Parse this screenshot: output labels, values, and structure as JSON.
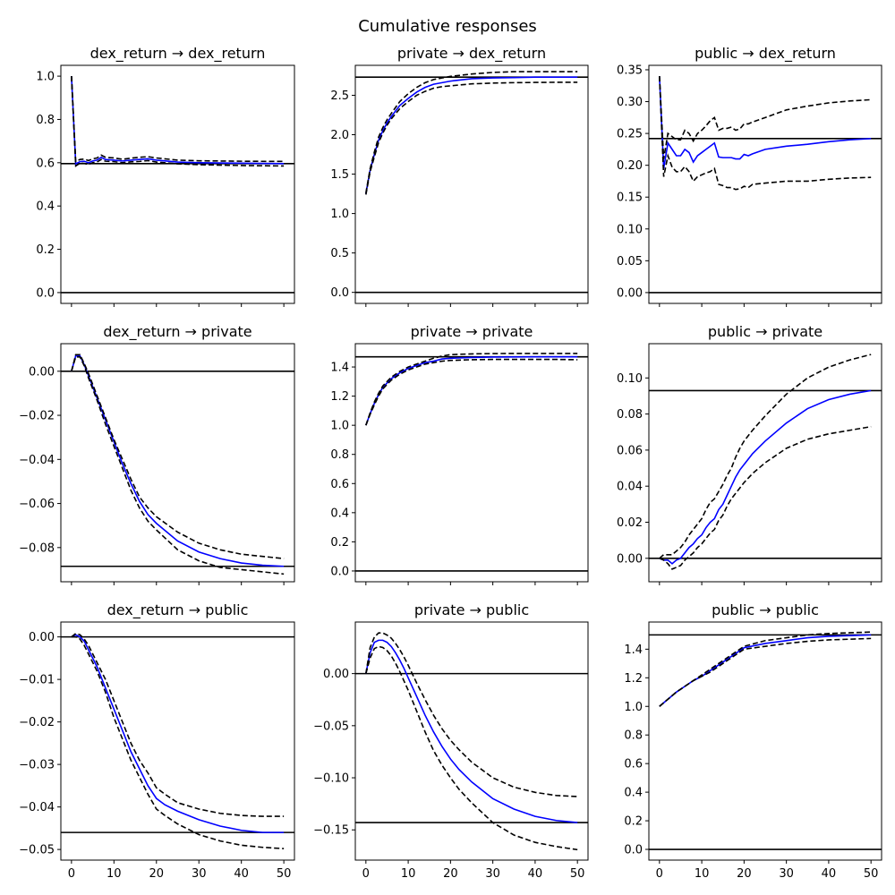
{
  "figure": {
    "title": "Cumulative responses"
  },
  "style": {
    "irf_color": "#0000ff",
    "band_color": "#000000",
    "ref_color": "#000000"
  },
  "chart_data": [
    {
      "type": "line",
      "title": "dex_return → dex_return",
      "xlim": [
        -2.5,
        52.5
      ],
      "ylim": [
        -0.05,
        1.05
      ],
      "xticks": [
        0,
        10,
        20,
        30,
        40,
        50
      ],
      "yticks": [
        0.0,
        0.2,
        0.4,
        0.6,
        0.8,
        1.0
      ],
      "ytick_labels": [
        "0.0",
        "0.2",
        "0.4",
        "0.6",
        "0.8",
        "1.0"
      ],
      "x": [
        0,
        1,
        2,
        3,
        4,
        5,
        6,
        7,
        8,
        10,
        12,
        14,
        16,
        18,
        20,
        25,
        30,
        40,
        50
      ],
      "irf": [
        1.0,
        0.595,
        0.605,
        0.607,
        0.6,
        0.608,
        0.612,
        0.625,
        0.615,
        0.612,
        0.608,
        0.612,
        0.615,
        0.618,
        0.612,
        0.603,
        0.6,
        0.598,
        0.596
      ],
      "lower": [
        1.0,
        0.585,
        0.598,
        0.597,
        0.592,
        0.6,
        0.603,
        0.615,
        0.607,
        0.605,
        0.6,
        0.604,
        0.606,
        0.61,
        0.603,
        0.595,
        0.591,
        0.587,
        0.585
      ],
      "upper": [
        1.0,
        0.605,
        0.615,
        0.617,
        0.61,
        0.618,
        0.622,
        0.635,
        0.625,
        0.622,
        0.616,
        0.621,
        0.625,
        0.628,
        0.622,
        0.612,
        0.609,
        0.607,
        0.606
      ],
      "hlines": [
        0.0,
        0.596
      ]
    },
    {
      "type": "line",
      "title": "private → dex_return",
      "xlim": [
        -2.5,
        52.5
      ],
      "ylim": [
        -0.14,
        2.88
      ],
      "xticks": [
        0,
        10,
        20,
        30,
        40,
        50
      ],
      "yticks": [
        0.0,
        0.5,
        1.0,
        1.5,
        2.0,
        2.5
      ],
      "ytick_labels": [
        "0.0",
        "0.5",
        "1.0",
        "1.5",
        "2.0",
        "2.5"
      ],
      "x": [
        0,
        1,
        2,
        3,
        4,
        5,
        6,
        8,
        10,
        12,
        14,
        16,
        18,
        20,
        25,
        30,
        35,
        40,
        45,
        50
      ],
      "irf": [
        1.25,
        1.55,
        1.75,
        1.93,
        2.05,
        2.15,
        2.23,
        2.37,
        2.46,
        2.54,
        2.6,
        2.64,
        2.66,
        2.68,
        2.71,
        2.72,
        2.725,
        2.73,
        2.73,
        2.73
      ],
      "lower": [
        1.24,
        1.53,
        1.72,
        1.9,
        2.02,
        2.12,
        2.2,
        2.33,
        2.42,
        2.5,
        2.55,
        2.59,
        2.61,
        2.62,
        2.645,
        2.655,
        2.66,
        2.663,
        2.665,
        2.665
      ],
      "upper": [
        1.26,
        1.57,
        1.78,
        1.97,
        2.09,
        2.19,
        2.27,
        2.42,
        2.52,
        2.6,
        2.66,
        2.7,
        2.72,
        2.74,
        2.77,
        2.79,
        2.8,
        2.8,
        2.8,
        2.8
      ],
      "hlines": [
        0.0,
        2.73
      ]
    },
    {
      "type": "line",
      "title": "public → dex_return",
      "xlim": [
        -2.5,
        52.5
      ],
      "ylim": [
        -0.017,
        0.357
      ],
      "xticks": [
        0,
        10,
        20,
        30,
        40,
        50
      ],
      "yticks": [
        0.0,
        0.05,
        0.1,
        0.15,
        0.2,
        0.25,
        0.3,
        0.35
      ],
      "ytick_labels": [
        "0.00",
        "0.05",
        "0.10",
        "0.15",
        "0.20",
        "0.25",
        "0.30",
        "0.35"
      ],
      "x": [
        0,
        1,
        2,
        3,
        4,
        5,
        6,
        7,
        8,
        9,
        10,
        11,
        12,
        13,
        14,
        15,
        16,
        17,
        18,
        19,
        20,
        21,
        22,
        25,
        30,
        35,
        40,
        45,
        50
      ],
      "irf": [
        0.34,
        0.195,
        0.235,
        0.225,
        0.215,
        0.215,
        0.225,
        0.22,
        0.205,
        0.215,
        0.22,
        0.225,
        0.23,
        0.235,
        0.213,
        0.212,
        0.212,
        0.212,
        0.21,
        0.21,
        0.217,
        0.215,
        0.218,
        0.225,
        0.23,
        0.233,
        0.237,
        0.24,
        0.242
      ],
      "lower": [
        0.34,
        0.182,
        0.215,
        0.197,
        0.19,
        0.19,
        0.198,
        0.19,
        0.175,
        0.182,
        0.185,
        0.188,
        0.19,
        0.195,
        0.17,
        0.168,
        0.165,
        0.165,
        0.162,
        0.163,
        0.167,
        0.165,
        0.17,
        0.172,
        0.175,
        0.175,
        0.178,
        0.18,
        0.181
      ],
      "upper": [
        0.34,
        0.21,
        0.25,
        0.245,
        0.24,
        0.24,
        0.255,
        0.25,
        0.238,
        0.25,
        0.255,
        0.262,
        0.27,
        0.275,
        0.255,
        0.258,
        0.258,
        0.26,
        0.255,
        0.257,
        0.265,
        0.265,
        0.268,
        0.275,
        0.287,
        0.293,
        0.298,
        0.301,
        0.303
      ],
      "hlines": [
        0.0,
        0.242
      ]
    },
    {
      "type": "line",
      "title": "dex_return → private",
      "xlim": [
        -2.5,
        52.5
      ],
      "ylim": [
        -0.0955,
        0.0125
      ],
      "xticks": [
        0,
        10,
        20,
        30,
        40,
        50
      ],
      "yticks": [
        0.0,
        -0.02,
        -0.04,
        -0.06,
        -0.08
      ],
      "ytick_labels": [
        "0.00",
        "−0.02",
        "−0.04",
        "−0.06",
        "−0.08"
      ],
      "x": [
        0,
        1,
        2,
        3,
        4,
        5,
        6,
        8,
        10,
        12,
        14,
        16,
        18,
        20,
        25,
        30,
        35,
        40,
        45,
        50
      ],
      "irf": [
        0.0,
        0.007,
        0.007,
        0.003,
        -0.002,
        -0.007,
        -0.012,
        -0.022,
        -0.032,
        -0.042,
        -0.051,
        -0.059,
        -0.065,
        -0.069,
        -0.077,
        -0.082,
        -0.085,
        -0.087,
        -0.088,
        -0.0885
      ],
      "lower": [
        0.0,
        0.0065,
        0.0065,
        0.0025,
        -0.003,
        -0.008,
        -0.013,
        -0.024,
        -0.034,
        -0.044,
        -0.054,
        -0.062,
        -0.068,
        -0.072,
        -0.081,
        -0.086,
        -0.089,
        -0.09,
        -0.091,
        -0.092
      ],
      "upper": [
        0.0,
        0.0075,
        0.0075,
        0.0035,
        -0.001,
        -0.006,
        -0.011,
        -0.021,
        -0.031,
        -0.04,
        -0.049,
        -0.057,
        -0.062,
        -0.066,
        -0.073,
        -0.078,
        -0.081,
        -0.083,
        -0.084,
        -0.085
      ],
      "hlines": [
        0.0,
        -0.0885
      ]
    },
    {
      "type": "line",
      "title": "private → private",
      "xlim": [
        -2.5,
        52.5
      ],
      "ylim": [
        -0.074,
        1.56
      ],
      "xticks": [
        0,
        10,
        20,
        30,
        40,
        50
      ],
      "yticks": [
        0.0,
        0.2,
        0.4,
        0.6,
        0.8,
        1.0,
        1.2,
        1.4
      ],
      "ytick_labels": [
        "0.0",
        "0.2",
        "0.4",
        "0.6",
        "0.8",
        "1.0",
        "1.2",
        "1.4"
      ],
      "x": [
        0,
        1,
        2,
        3,
        4,
        5,
        6,
        8,
        10,
        12,
        14,
        16,
        18,
        20,
        25,
        30,
        35,
        40,
        45,
        50
      ],
      "irf": [
        1.0,
        1.08,
        1.15,
        1.21,
        1.26,
        1.29,
        1.32,
        1.36,
        1.39,
        1.41,
        1.43,
        1.44,
        1.455,
        1.46,
        1.465,
        1.468,
        1.469,
        1.47,
        1.47,
        1.47
      ],
      "lower": [
        1.0,
        1.075,
        1.14,
        1.2,
        1.25,
        1.28,
        1.31,
        1.35,
        1.38,
        1.4,
        1.42,
        1.43,
        1.44,
        1.445,
        1.45,
        1.452,
        1.452,
        1.452,
        1.452,
        1.45
      ],
      "upper": [
        1.0,
        1.085,
        1.16,
        1.22,
        1.27,
        1.3,
        1.33,
        1.37,
        1.4,
        1.42,
        1.44,
        1.46,
        1.475,
        1.485,
        1.49,
        1.492,
        1.493,
        1.493,
        1.493,
        1.493
      ],
      "hlines": [
        0.0,
        1.47
      ]
    },
    {
      "type": "line",
      "title": "public → private",
      "xlim": [
        -2.5,
        52.5
      ],
      "ylim": [
        -0.013,
        0.119
      ],
      "xticks": [
        0,
        10,
        20,
        30,
        40,
        50
      ],
      "yticks": [
        0.0,
        0.02,
        0.04,
        0.06,
        0.08,
        0.1
      ],
      "ytick_labels": [
        "0.00",
        "0.02",
        "0.04",
        "0.06",
        "0.08",
        "0.10"
      ],
      "x": [
        0,
        1,
        2,
        3,
        4,
        5,
        6,
        7,
        8,
        9,
        10,
        11,
        12,
        13,
        14,
        15,
        16,
        17,
        18,
        19,
        20,
        22,
        25,
        30,
        35,
        40,
        45,
        50
      ],
      "irf": [
        0.0,
        -0.001,
        -0.001,
        -0.003,
        -0.001,
        0.0,
        0.003,
        0.006,
        0.008,
        0.011,
        0.013,
        0.017,
        0.02,
        0.022,
        0.027,
        0.03,
        0.035,
        0.04,
        0.045,
        0.049,
        0.052,
        0.058,
        0.065,
        0.075,
        0.083,
        0.088,
        0.091,
        0.093
      ],
      "lower": [
        0.0,
        -0.001,
        -0.003,
        -0.006,
        -0.005,
        -0.004,
        -0.001,
        0.001,
        0.003,
        0.006,
        0.008,
        0.011,
        0.014,
        0.016,
        0.021,
        0.024,
        0.029,
        0.033,
        0.036,
        0.039,
        0.042,
        0.047,
        0.053,
        0.061,
        0.066,
        0.069,
        0.071,
        0.073
      ],
      "upper": [
        0.0,
        0.002,
        0.002,
        0.002,
        0.004,
        0.006,
        0.009,
        0.013,
        0.016,
        0.019,
        0.022,
        0.027,
        0.031,
        0.033,
        0.037,
        0.041,
        0.046,
        0.05,
        0.056,
        0.061,
        0.065,
        0.071,
        0.079,
        0.091,
        0.1,
        0.106,
        0.11,
        0.113
      ],
      "hlines": [
        0.0,
        0.093
      ]
    },
    {
      "type": "line",
      "title": "dex_return → public",
      "xlim": [
        -2.5,
        52.5
      ],
      "ylim": [
        -0.0525,
        0.0035
      ],
      "xticks": [
        0,
        10,
        20,
        30,
        40,
        50
      ],
      "xtick_labels": [
        "0",
        "10",
        "20",
        "30",
        "40",
        "50"
      ],
      "yticks": [
        0.0,
        -0.01,
        -0.02,
        -0.03,
        -0.04,
        -0.05
      ],
      "ytick_labels": [
        "0.00",
        "−0.01",
        "−0.02",
        "−0.03",
        "−0.04",
        "−0.05"
      ],
      "x": [
        0,
        1,
        2,
        3,
        4,
        5,
        6,
        8,
        10,
        12,
        14,
        16,
        18,
        20,
        22,
        25,
        30,
        35,
        40,
        45,
        50
      ],
      "irf": [
        0.0,
        0.0005,
        0.0,
        -0.001,
        -0.003,
        -0.005,
        -0.007,
        -0.012,
        -0.017,
        -0.022,
        -0.027,
        -0.031,
        -0.035,
        -0.038,
        -0.0395,
        -0.041,
        -0.043,
        -0.0445,
        -0.0455,
        -0.046,
        -0.046
      ],
      "lower": [
        0.0,
        0.0,
        -0.0005,
        -0.002,
        -0.004,
        -0.006,
        -0.008,
        -0.013,
        -0.019,
        -0.024,
        -0.029,
        -0.033,
        -0.037,
        -0.0405,
        -0.042,
        -0.044,
        -0.0465,
        -0.048,
        -0.049,
        -0.0495,
        -0.0498
      ],
      "upper": [
        0.0,
        0.0008,
        0.0005,
        -0.0005,
        -0.002,
        -0.004,
        -0.006,
        -0.01,
        -0.015,
        -0.02,
        -0.025,
        -0.029,
        -0.032,
        -0.0355,
        -0.037,
        -0.039,
        -0.0405,
        -0.0415,
        -0.042,
        -0.0422,
        -0.0422
      ],
      "hlines": [
        0.0,
        -0.046
      ]
    },
    {
      "type": "line",
      "title": "private → public",
      "xlim": [
        -2.5,
        52.5
      ],
      "ylim": [
        -0.179,
        0.0495
      ],
      "xticks": [
        0,
        10,
        20,
        30,
        40,
        50
      ],
      "xtick_labels": [
        "0",
        "10",
        "20",
        "30",
        "40",
        "50"
      ],
      "yticks": [
        0.0,
        -0.05,
        -0.1,
        -0.15
      ],
      "ytick_labels": [
        "0.00",
        "−0.05",
        "−0.10",
        "−0.15"
      ],
      "x": [
        0,
        1,
        2,
        3,
        4,
        5,
        6,
        7,
        8,
        9,
        10,
        12,
        14,
        16,
        18,
        20,
        22,
        25,
        30,
        35,
        40,
        45,
        50
      ],
      "irf": [
        0.0,
        0.02,
        0.03,
        0.032,
        0.032,
        0.03,
        0.026,
        0.02,
        0.013,
        0.005,
        -0.004,
        -0.022,
        -0.04,
        -0.056,
        -0.07,
        -0.082,
        -0.092,
        -0.104,
        -0.12,
        -0.13,
        -0.137,
        -0.141,
        -0.143
      ],
      "lower": [
        0.0,
        0.015,
        0.024,
        0.026,
        0.025,
        0.022,
        0.017,
        0.01,
        0.002,
        -0.007,
        -0.016,
        -0.036,
        -0.056,
        -0.074,
        -0.088,
        -0.1,
        -0.111,
        -0.124,
        -0.143,
        -0.155,
        -0.162,
        -0.166,
        -0.169
      ],
      "upper": [
        0.0,
        0.025,
        0.035,
        0.039,
        0.039,
        0.037,
        0.034,
        0.029,
        0.023,
        0.016,
        0.008,
        -0.009,
        -0.025,
        -0.04,
        -0.053,
        -0.064,
        -0.073,
        -0.085,
        -0.1,
        -0.109,
        -0.114,
        -0.117,
        -0.118
      ],
      "hlines": [
        0.0,
        -0.143
      ]
    },
    {
      "type": "line",
      "title": "public → public",
      "xlim": [
        -2.5,
        52.5
      ],
      "ylim": [
        -0.075,
        1.59
      ],
      "xticks": [
        0,
        10,
        20,
        30,
        40,
        50
      ],
      "xtick_labels": [
        "0",
        "10",
        "20",
        "30",
        "40",
        "50"
      ],
      "yticks": [
        0.0,
        0.2,
        0.4,
        0.6,
        0.8,
        1.0,
        1.2,
        1.4
      ],
      "ytick_labels": [
        "0.0",
        "0.2",
        "0.4",
        "0.6",
        "0.8",
        "1.0",
        "1.2",
        "1.4"
      ],
      "x": [
        0,
        2,
        4,
        6,
        8,
        10,
        12,
        14,
        16,
        18,
        20,
        25,
        30,
        35,
        40,
        45,
        50
      ],
      "irf": [
        1.0,
        1.05,
        1.1,
        1.14,
        1.18,
        1.21,
        1.25,
        1.29,
        1.33,
        1.37,
        1.41,
        1.44,
        1.46,
        1.48,
        1.49,
        1.495,
        1.5
      ],
      "lower": [
        1.0,
        1.05,
        1.1,
        1.14,
        1.18,
        1.21,
        1.24,
        1.28,
        1.32,
        1.36,
        1.4,
        1.42,
        1.44,
        1.455,
        1.465,
        1.47,
        1.475
      ],
      "upper": [
        1.0,
        1.05,
        1.1,
        1.14,
        1.18,
        1.22,
        1.26,
        1.3,
        1.34,
        1.38,
        1.42,
        1.46,
        1.48,
        1.5,
        1.51,
        1.515,
        1.52
      ],
      "hlines": [
        0.0,
        1.5
      ]
    }
  ]
}
